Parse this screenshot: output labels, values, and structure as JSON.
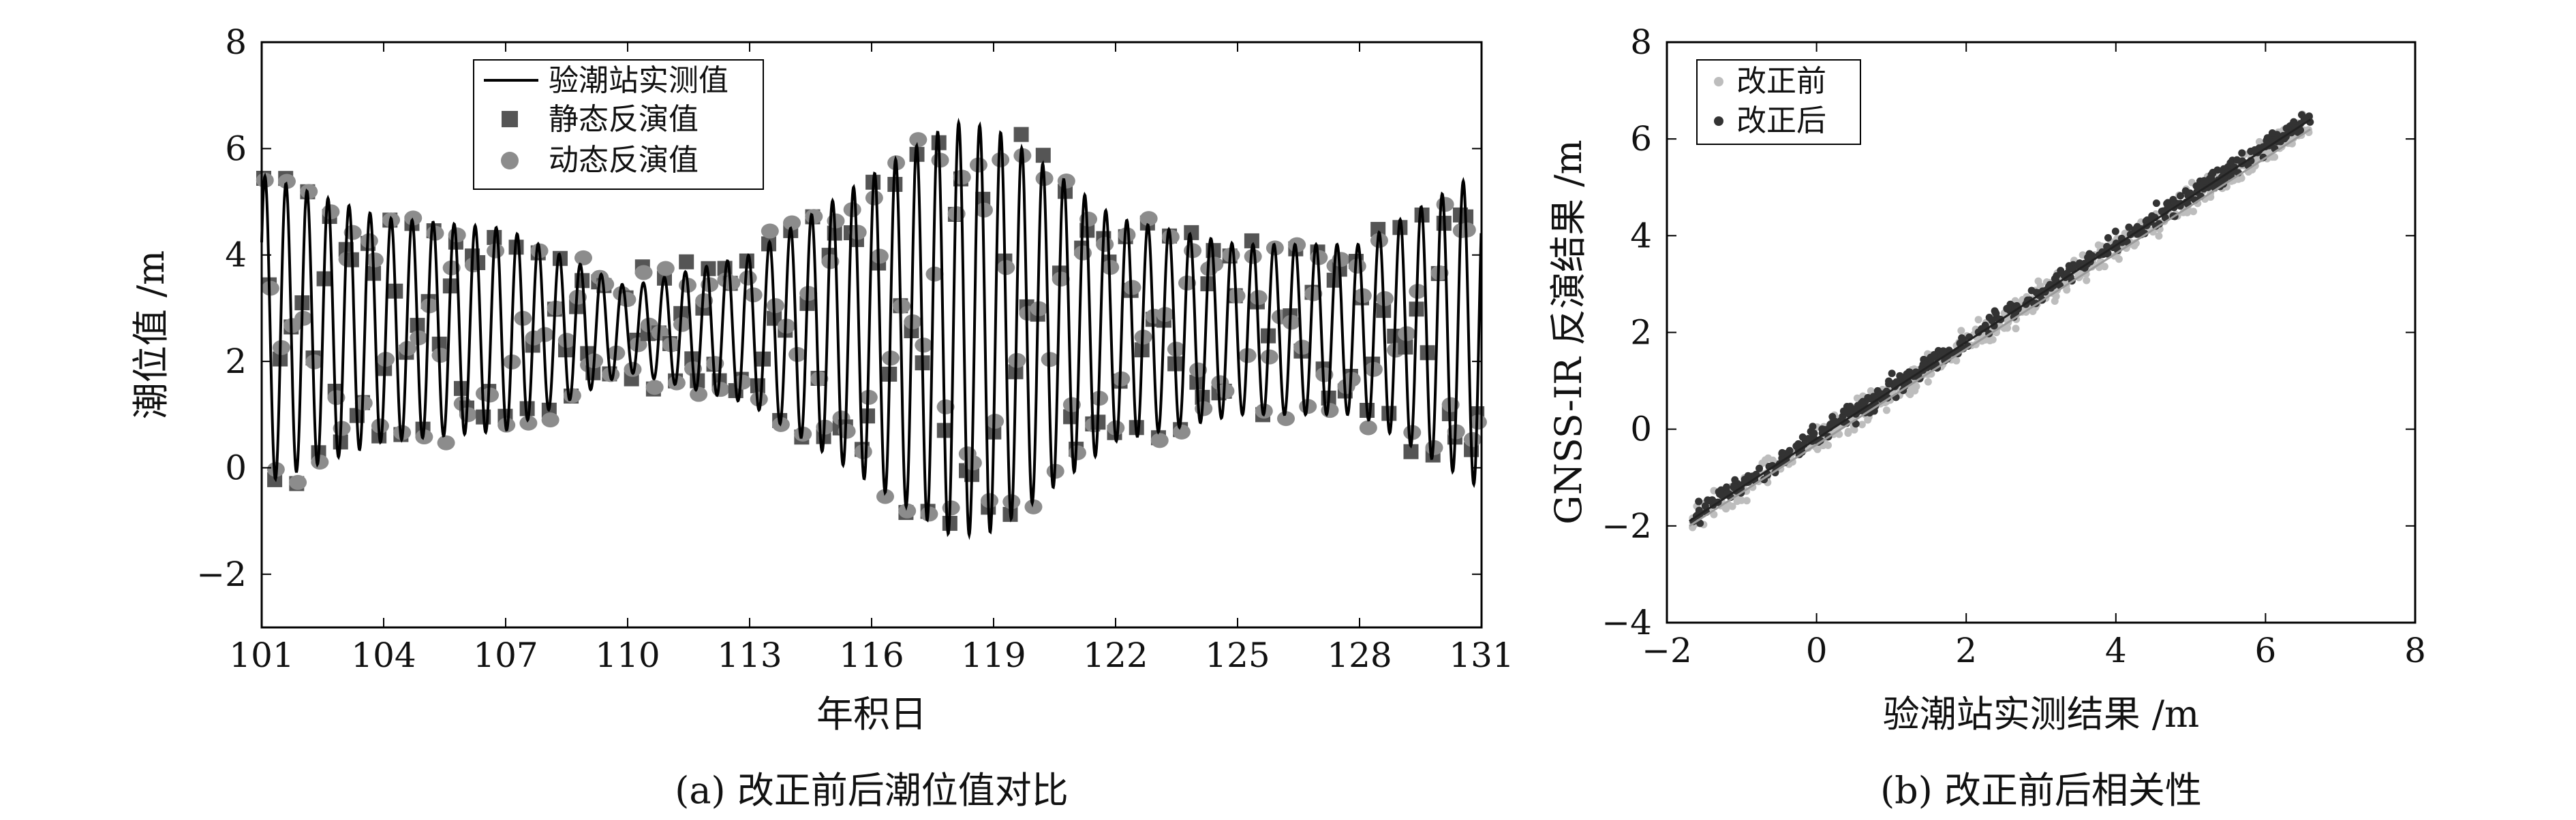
{
  "chart_data": [
    {
      "type": "line",
      "caption": "(a) 改正前后潮位值对比",
      "xlabel": "年积日",
      "ylabel": "潮位值 /m",
      "xlim": [
        101,
        131
      ],
      "ylim": [
        -3,
        8
      ],
      "xticks": [
        101,
        104,
        107,
        110,
        113,
        116,
        119,
        122,
        125,
        128,
        131
      ],
      "yticks": [
        -2,
        0,
        2,
        4,
        6,
        8
      ],
      "ytick_labels": [
        "−2",
        "0",
        "2",
        "4",
        "6",
        "8"
      ],
      "grid": false,
      "legend_position": "top-center",
      "tide_model": {
        "mean": 2.6,
        "period_days": 0.517,
        "amplitude_by_day": [
          [
            101,
            2.9
          ],
          [
            104,
            2.1
          ],
          [
            107,
            1.9
          ],
          [
            110,
            0.8
          ],
          [
            113,
            1.4
          ],
          [
            116,
            2.9
          ],
          [
            118,
            3.9
          ],
          [
            119,
            3.8
          ],
          [
            122,
            2.1
          ],
          [
            125,
            1.6
          ],
          [
            128,
            1.6
          ],
          [
            131,
            3.0
          ]
        ]
      },
      "series": [
        {
          "name": "验潮站实测值",
          "kind": "line",
          "color": "#000000"
        },
        {
          "name": "静态反演值",
          "kind": "square-markers",
          "color": "#555555"
        },
        {
          "name": "动态反演值",
          "kind": "circle-markers",
          "color": "#8c8c8c"
        }
      ]
    },
    {
      "type": "scatter",
      "caption": "(b) 改正前后相关性",
      "xlabel": "验潮站实测结果 /m",
      "ylabel": "GNSS-IR 反演结果 /m",
      "xlim": [
        -2,
        8
      ],
      "ylim": [
        -4,
        8
      ],
      "xticks": [
        -2,
        0,
        2,
        4,
        6,
        8
      ],
      "xtick_labels": [
        "−2",
        "0",
        "2",
        "4",
        "6",
        "8"
      ],
      "yticks": [
        -4,
        -2,
        0,
        2,
        4,
        6,
        8
      ],
      "ytick_labels": [
        "−4",
        "−2",
        "0",
        "2",
        "4",
        "6",
        "8"
      ],
      "grid": false,
      "legend_position": "top-left",
      "x_range_of_points": [
        -1.7,
        6.6
      ],
      "series": [
        {
          "name": "改正前",
          "color": "#bdbdbd",
          "fit": [
            -1.7,
            -2.0,
            6.6,
            6.2
          ]
        },
        {
          "name": "改正后",
          "color": "#333333",
          "fit": [
            -1.7,
            -1.9,
            6.6,
            6.4
          ]
        }
      ]
    }
  ]
}
